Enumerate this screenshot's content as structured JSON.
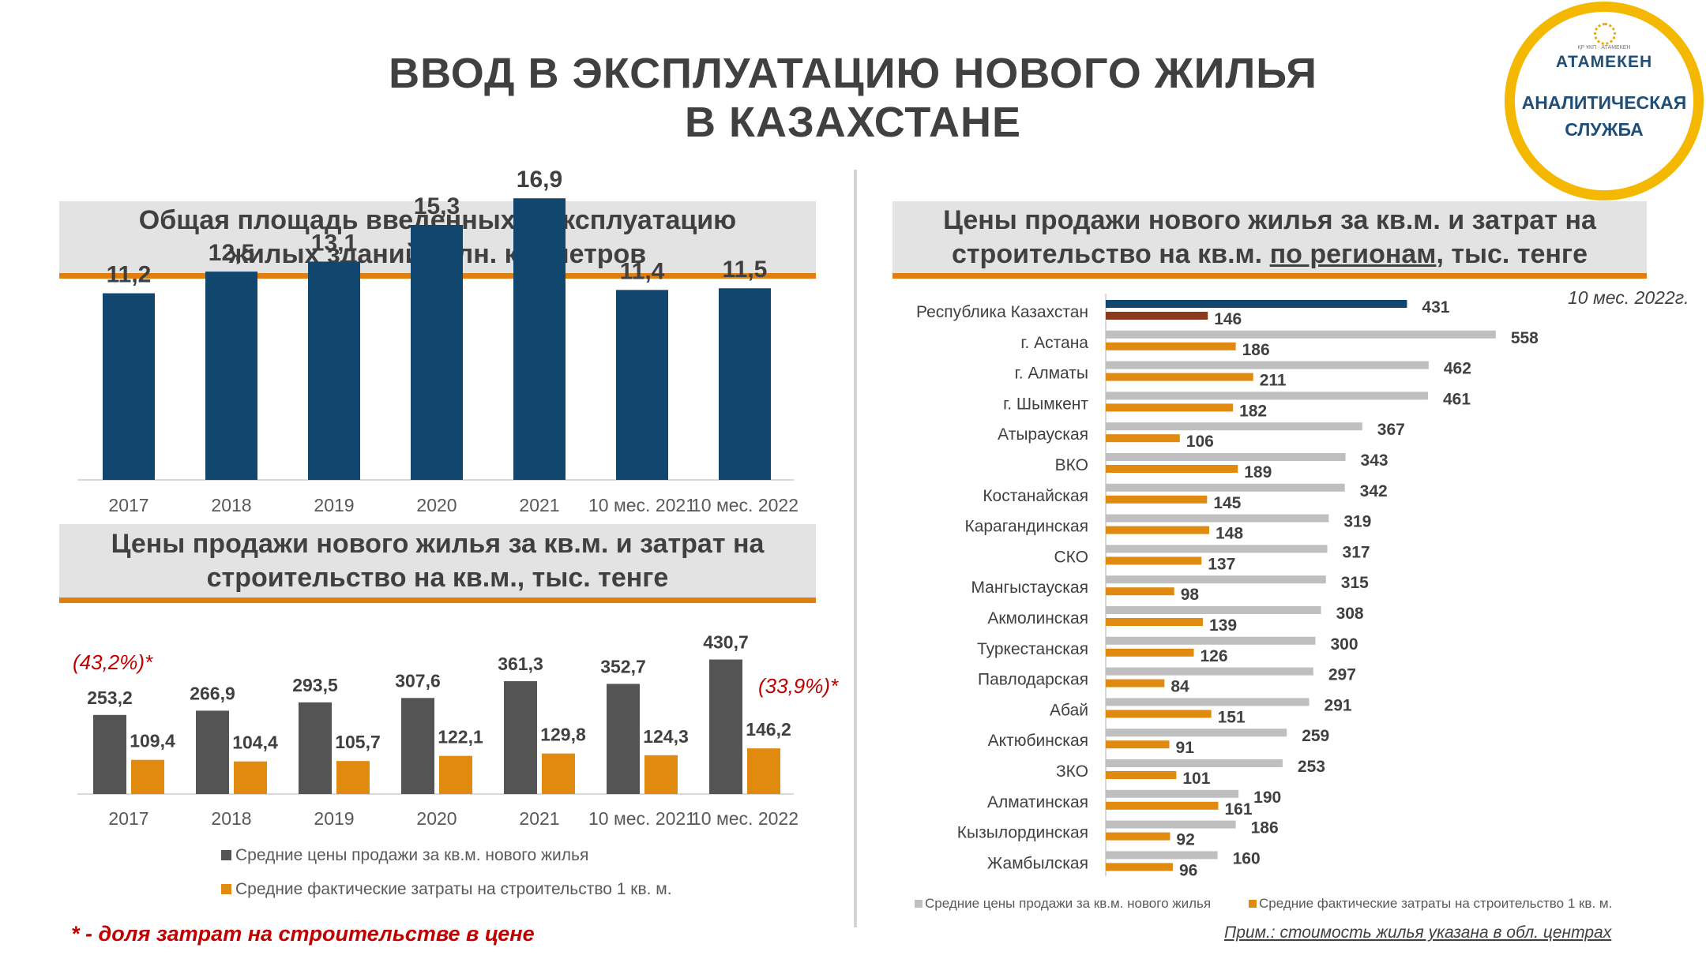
{
  "title": {
    "line1": "ВВОД В ЭКСПЛУАТАЦИЮ НОВОГО ЖИЛЬЯ",
    "line2": "В КАЗАХСТАНЕ"
  },
  "logo": {
    "small": "ҚР ҰКП · АТАМЕКЕН",
    "brand": "АТАМЕКЕН",
    "line1": "АНАЛИТИЧЕСКАЯ",
    "line2": "СЛУЖБА"
  },
  "panels": {
    "area": {
      "line1": "Общая площадь введенных в эксплуатацию",
      "line2": "жилых зданий, млн. кв. метров"
    },
    "prices": {
      "line1": "Цены продажи нового жилья за кв.м. и затрат на",
      "line2": "строительство  на кв.м., тыс. тенге"
    },
    "regions": {
      "line1": "Цены продажи нового жилья за кв.м. и затрат на",
      "line2_a": "строительство  на кв.м. ",
      "line2_u": "по регионам",
      "line2_b": ", тыс. тенге"
    }
  },
  "period_label": "10 мес. 2022г.",
  "footnote": "* - доля затрат на строительстве в цене",
  "note_right": "Прим.: стоимость жилья указана в обл. центрах",
  "colors": {
    "navy": "#11466e",
    "dark_gray": "#545454",
    "orange": "#e08a10",
    "light_gray": "#bfbfbf",
    "dark_red": "#8b3a1e",
    "red_text": "#c00000"
  },
  "chart_data": [
    {
      "type": "bar",
      "categories": [
        "2017",
        "2018",
        "2019",
        "2020",
        "2021",
        "10 мес. 2021",
        "10 мес. 2022"
      ],
      "values": [
        11.2,
        12.5,
        13.1,
        15.3,
        16.9,
        11.4,
        11.5
      ],
      "value_labels": [
        "11,2",
        "12,5",
        "13,1",
        "15,3",
        "16,9",
        "11,4",
        "11,5"
      ],
      "ylim": [
        0,
        18
      ]
    },
    {
      "type": "bar",
      "categories": [
        "2017",
        "2018",
        "2019",
        "2020",
        "2021",
        "10 мес. 2021",
        "10 мес. 2022"
      ],
      "series": [
        {
          "name": "Средние цены продажи за кв.м. нового жилья",
          "values": [
            253.2,
            266.9,
            293.5,
            307.6,
            361.3,
            352.7,
            430.7
          ],
          "labels": [
            "253,2",
            "266,9",
            "293,5",
            "307,6",
            "361,3",
            "352,7",
            "430,7"
          ]
        },
        {
          "name": "Средние фактические затраты на строительство 1 кв. м.",
          "values": [
            109.4,
            104.4,
            105.7,
            122.1,
            129.8,
            124.3,
            146.2
          ],
          "labels": [
            "109,4",
            "104,4",
            "105,7",
            "122,1",
            "129,8",
            "124,3",
            "146,2"
          ]
        }
      ],
      "annotations": [
        "(43,2%)*",
        "(33,9%)*"
      ],
      "ylim": [
        0,
        450
      ]
    },
    {
      "type": "bar",
      "orientation": "horizontal",
      "categories": [
        "Республика Казахстан",
        "г. Астана",
        "г. Алматы",
        "г. Шымкент",
        "Атырауская",
        "ВКО",
        "Костанайская",
        "Карагандинская",
        "СКО",
        "Мангыстауская",
        "Акмолинская",
        "Туркестанская",
        "Павлодарская",
        "Абай",
        "Актюбинская",
        "ЗКО",
        "Алматинская",
        "Кызылординская",
        "Жамбылская"
      ],
      "series": [
        {
          "name": "Средние цены продажи за кв.м. нового жилья",
          "values": [
            431,
            558,
            462,
            461,
            367,
            343,
            342,
            319,
            317,
            315,
            308,
            300,
            297,
            291,
            259,
            253,
            190,
            186,
            160
          ]
        },
        {
          "name": "Средние фактические затраты на строительство 1 кв. м.",
          "values": [
            146,
            186,
            211,
            182,
            106,
            189,
            145,
            148,
            137,
            98,
            139,
            126,
            84,
            151,
            91,
            101,
            161,
            92,
            96
          ]
        }
      ],
      "xlim": [
        0,
        620
      ]
    }
  ]
}
